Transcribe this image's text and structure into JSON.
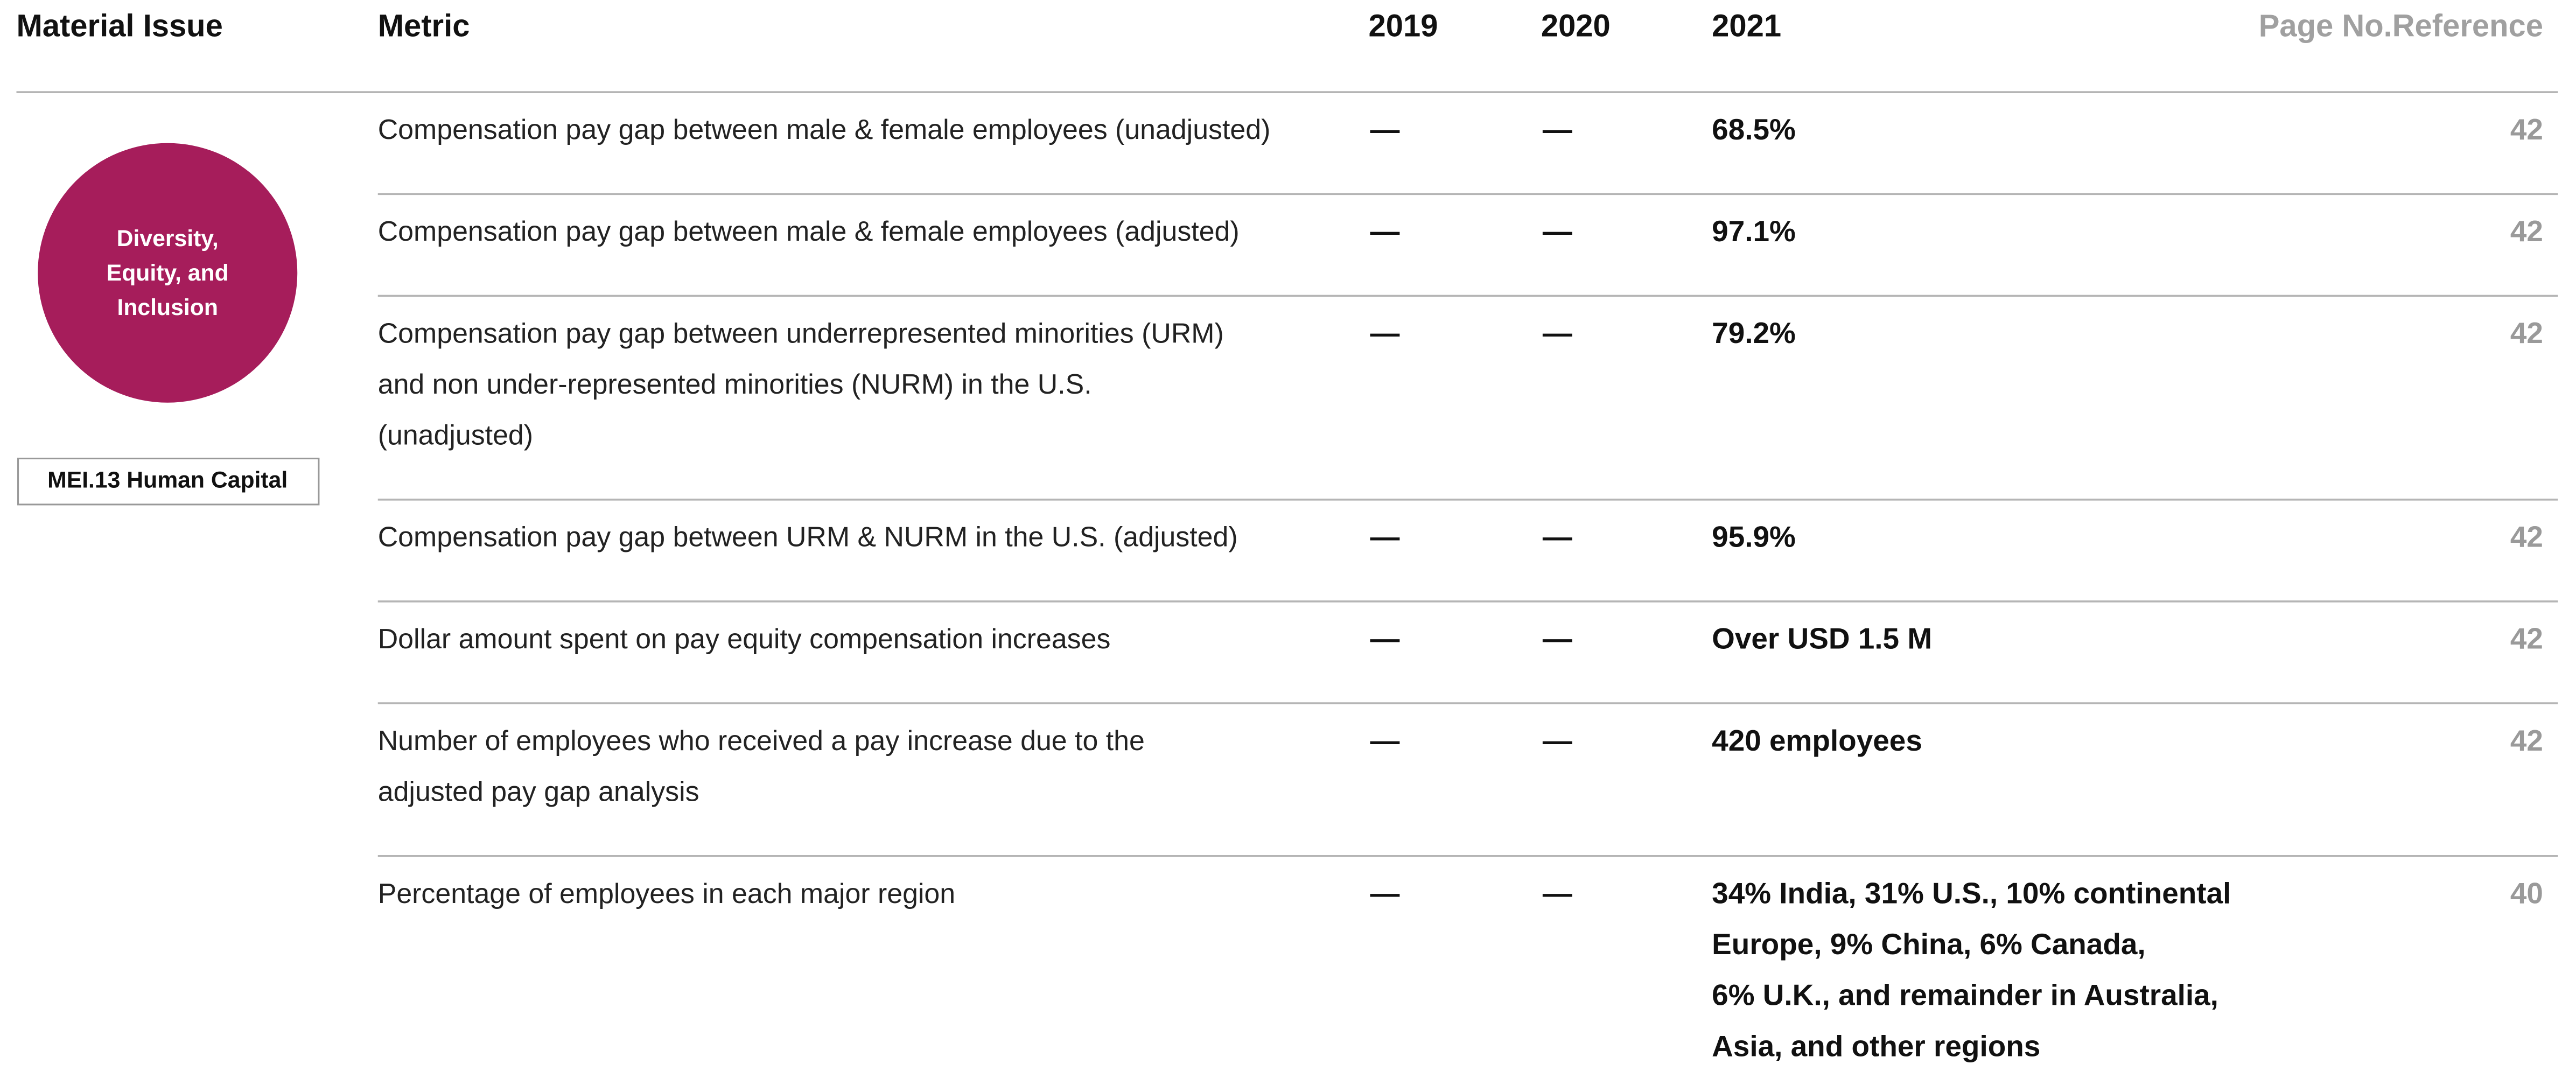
{
  "table": {
    "headers": [
      "Material Issue",
      "Metric",
      "2019",
      "2020",
      "2021",
      "Page No.Reference"
    ],
    "material_issue": {
      "label_lines": [
        "Diversity,",
        "Equity, and",
        "Inclusion"
      ],
      "code": "MEI.13 Human Capital"
    },
    "rows": [
      {
        "metric_lines": [
          "Compensation pay gap between male & female employees (unadjusted)"
        ],
        "y2019": "—",
        "y2020": "—",
        "y2021_lines": [
          "68.5%"
        ],
        "page": "42"
      },
      {
        "metric_lines": [
          "Compensation pay gap between male & female employees (adjusted)"
        ],
        "y2019": "—",
        "y2020": "—",
        "y2021_lines": [
          "97.1%"
        ],
        "page": "42"
      },
      {
        "metric_lines": [
          "Compensation pay gap between underrepresented minorities (URM)",
          "and non under-represented minorities (NURM) in the U.S.",
          "(unadjusted)"
        ],
        "y2019": "—",
        "y2020": "—",
        "y2021_lines": [
          "79.2%"
        ],
        "page": "42"
      },
      {
        "metric_lines": [
          "Compensation pay gap between URM & NURM in the U.S. (adjusted)"
        ],
        "y2019": "—",
        "y2020": "—",
        "y2021_lines": [
          "95.9%"
        ],
        "page": "42"
      },
      {
        "metric_lines": [
          "Dollar amount spent on pay equity compensation increases"
        ],
        "y2019": "—",
        "y2020": "—",
        "y2021_lines": [
          "Over USD 1.5 M"
        ],
        "page": "42"
      },
      {
        "metric_lines": [
          "Number of employees who received a pay increase due to the",
          "adjusted pay gap analysis"
        ],
        "y2019": "—",
        "y2020": "—",
        "y2021_lines": [
          "420 employees"
        ],
        "page": "42"
      },
      {
        "metric_lines": [
          "Percentage of employees in each major region"
        ],
        "y2019": "—",
        "y2020": "—",
        "y2021_lines": [
          "34% India, 31% U.S., 10% continental",
          "Europe, 9% China, 6% Canada,",
          "6% U.K., and remainder in Australia,",
          "Asia, and other regions"
        ],
        "page": "40"
      }
    ]
  }
}
